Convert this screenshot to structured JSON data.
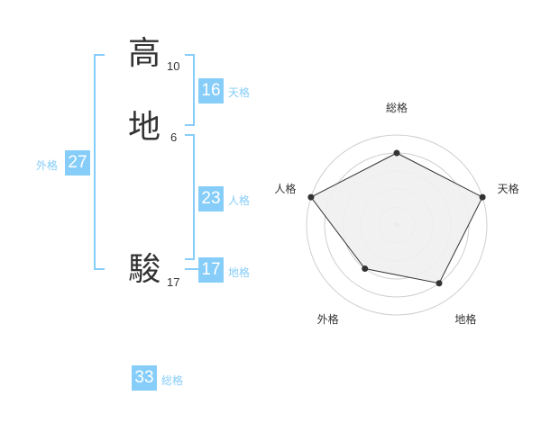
{
  "name": [
    {
      "char": "高",
      "strokes": "10"
    },
    {
      "char": "地",
      "strokes": "6"
    },
    {
      "char": "駿",
      "strokes": "17"
    }
  ],
  "kaku": {
    "tenkaku": {
      "value": "16",
      "label": "天格"
    },
    "jinkaku": {
      "value": "23",
      "label": "人格"
    },
    "chikaku": {
      "value": "17",
      "label": "地格"
    },
    "gaikaku": {
      "value": "27",
      "label": "外格"
    },
    "soukaku": {
      "value": "33",
      "label": "総格"
    }
  },
  "colors": {
    "accent": "#86cdf9",
    "text": "#333333",
    "radar_fill": "#f0f0f0",
    "radar_line": "#333333"
  },
  "chart_data": {
    "type": "radar",
    "categories": [
      "総格",
      "天格",
      "地格",
      "外格",
      "人格"
    ],
    "values": [
      4,
      5,
      4,
      3,
      5
    ],
    "rmax": 5,
    "rings": 5
  }
}
